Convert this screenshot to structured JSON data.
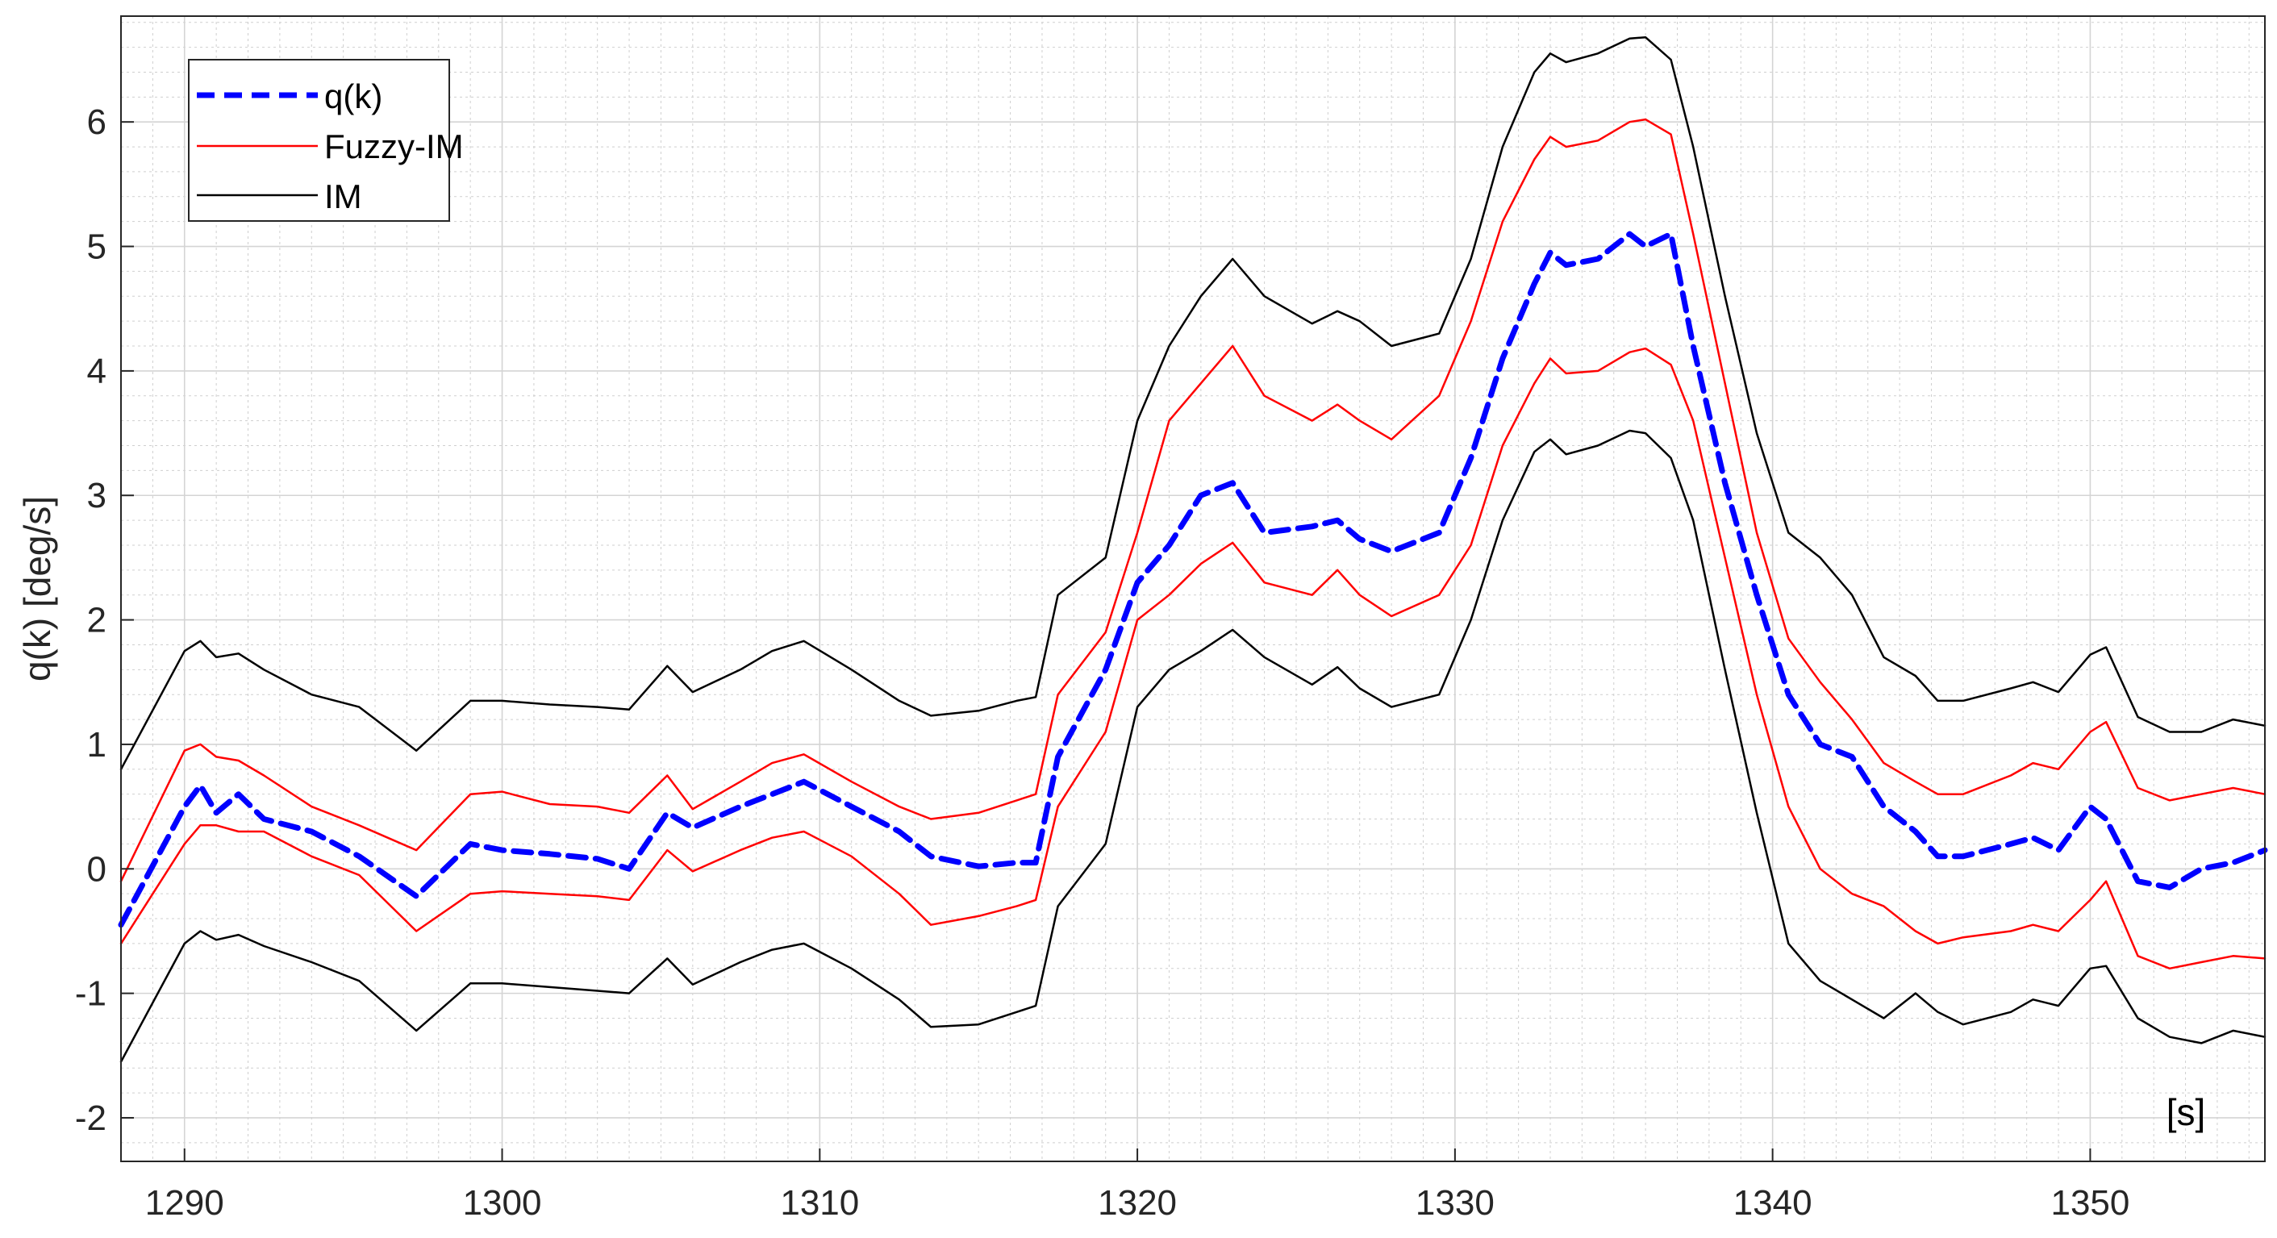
{
  "chart_data": {
    "type": "line",
    "title": "",
    "xlabel": "",
    "ylabel": "q(k) [deg/s]",
    "unit_annotation": "[s]",
    "xlim": [
      1288,
      1355.5
    ],
    "ylim": [
      -2.35,
      6.85
    ],
    "xticks": [
      1290,
      1300,
      1310,
      1320,
      1330,
      1340,
      1350
    ],
    "yticks": [
      -2,
      -1,
      0,
      1,
      2,
      3,
      4,
      5,
      6
    ],
    "grid": "major and minor",
    "legend_position": "top-left",
    "colors": {
      "q": "#0000ff",
      "fuzzy": "#ff0000",
      "im": "#000000",
      "grid": "#cfcfcf"
    },
    "legend": [
      {
        "key": "q",
        "label": "q(k)",
        "style": "dashed",
        "color": "#0000ff"
      },
      {
        "key": "fuzzy",
        "label": "Fuzzy-IM",
        "style": "solid",
        "color": "#ff0000"
      },
      {
        "key": "im",
        "label": "IM",
        "style": "solid",
        "color": "#000000"
      }
    ],
    "x": [
      1288,
      1290,
      1290.5,
      1291,
      1291.7,
      1292.5,
      1294,
      1295.5,
      1297.3,
      1299,
      1300,
      1301.5,
      1303,
      1304,
      1305.2,
      1306,
      1307.5,
      1308.5,
      1309.5,
      1311,
      1312.5,
      1313.5,
      1315,
      1316.2,
      1316.8,
      1317.5,
      1319,
      1320,
      1321,
      1322,
      1323,
      1324,
      1325.5,
      1326.3,
      1327,
      1328,
      1329.5,
      1330.5,
      1331.5,
      1332.5,
      1333,
      1333.5,
      1334.5,
      1335.5,
      1336,
      1336.8,
      1337.5,
      1338.5,
      1339.5,
      1340.5,
      1341.5,
      1342.5,
      1343.5,
      1344.5,
      1345.2,
      1346,
      1347.5,
      1348.2,
      1349,
      1350,
      1350.5,
      1351.5,
      1352.5,
      1353.5,
      1354.5,
      1355.5
    ],
    "series": [
      {
        "name": "q(k)",
        "key": "q",
        "values": [
          -0.45,
          0.5,
          0.67,
          0.45,
          0.6,
          0.4,
          0.3,
          0.1,
          -0.22,
          0.2,
          0.15,
          0.12,
          0.08,
          0.0,
          0.45,
          0.33,
          0.5,
          0.6,
          0.7,
          0.5,
          0.3,
          0.1,
          0.02,
          0.05,
          0.05,
          0.9,
          1.6,
          2.3,
          2.6,
          3.0,
          3.1,
          2.7,
          2.75,
          2.8,
          2.65,
          2.55,
          2.7,
          3.3,
          4.1,
          4.7,
          4.95,
          4.85,
          4.9,
          5.1,
          5.0,
          5.1,
          4.2,
          3.1,
          2.2,
          1.4,
          1.0,
          0.9,
          0.5,
          0.3,
          0.1,
          0.1,
          0.2,
          0.25,
          0.15,
          0.5,
          0.4,
          -0.1,
          -0.15,
          0.0,
          0.05,
          0.15
        ]
      },
      {
        "name": "Fuzzy-IM",
        "key": "fuzzy_upper",
        "values": [
          -0.1,
          0.95,
          1.0,
          0.9,
          0.87,
          0.75,
          0.5,
          0.35,
          0.15,
          0.6,
          0.62,
          0.52,
          0.5,
          0.45,
          0.75,
          0.48,
          0.7,
          0.85,
          0.92,
          0.7,
          0.5,
          0.4,
          0.45,
          0.55,
          0.6,
          1.4,
          1.9,
          2.7,
          3.6,
          3.9,
          4.2,
          3.8,
          3.6,
          3.73,
          3.6,
          3.45,
          3.8,
          4.4,
          5.2,
          5.7,
          5.88,
          5.8,
          5.85,
          6.0,
          6.02,
          5.9,
          5.1,
          3.9,
          2.7,
          1.85,
          1.5,
          1.2,
          0.85,
          0.7,
          0.6,
          0.6,
          0.75,
          0.85,
          0.8,
          1.1,
          1.18,
          0.65,
          0.55,
          0.6,
          0.65,
          0.6
        ]
      },
      {
        "name": "Fuzzy-IM",
        "key": "fuzzy_lower",
        "values": [
          -0.6,
          0.2,
          0.35,
          0.35,
          0.3,
          0.3,
          0.1,
          -0.05,
          -0.5,
          -0.2,
          -0.18,
          -0.2,
          -0.22,
          -0.25,
          0.15,
          -0.02,
          0.15,
          0.25,
          0.3,
          0.1,
          -0.2,
          -0.45,
          -0.38,
          -0.3,
          -0.25,
          0.5,
          1.1,
          2.0,
          2.2,
          2.45,
          2.62,
          2.3,
          2.2,
          2.4,
          2.2,
          2.03,
          2.2,
          2.6,
          3.4,
          3.9,
          4.1,
          3.98,
          4.0,
          4.15,
          4.18,
          4.05,
          3.6,
          2.5,
          1.4,
          0.5,
          0.0,
          -0.2,
          -0.3,
          -0.5,
          -0.6,
          -0.55,
          -0.5,
          -0.45,
          -0.5,
          -0.25,
          -0.1,
          -0.7,
          -0.8,
          -0.75,
          -0.7,
          -0.72
        ]
      },
      {
        "name": "IM",
        "key": "im_upper",
        "values": [
          0.8,
          1.75,
          1.83,
          1.7,
          1.73,
          1.6,
          1.4,
          1.3,
          0.95,
          1.35,
          1.35,
          1.32,
          1.3,
          1.28,
          1.63,
          1.42,
          1.6,
          1.75,
          1.83,
          1.6,
          1.35,
          1.23,
          1.27,
          1.35,
          1.38,
          2.2,
          2.5,
          3.6,
          4.2,
          4.6,
          4.9,
          4.6,
          4.38,
          4.48,
          4.4,
          4.2,
          4.3,
          4.9,
          5.8,
          6.4,
          6.55,
          6.48,
          6.55,
          6.67,
          6.68,
          6.5,
          5.8,
          4.6,
          3.5,
          2.7,
          2.5,
          2.2,
          1.7,
          1.55,
          1.35,
          1.35,
          1.45,
          1.5,
          1.42,
          1.72,
          1.78,
          1.22,
          1.1,
          1.1,
          1.2,
          1.15
        ]
      },
      {
        "name": "IM",
        "key": "im_lower",
        "values": [
          -1.55,
          -0.6,
          -0.5,
          -0.57,
          -0.53,
          -0.62,
          -0.75,
          -0.9,
          -1.3,
          -0.92,
          -0.92,
          -0.95,
          -0.98,
          -1.0,
          -0.72,
          -0.93,
          -0.75,
          -0.65,
          -0.6,
          -0.8,
          -1.05,
          -1.27,
          -1.25,
          -1.15,
          -1.1,
          -0.3,
          0.2,
          1.3,
          1.6,
          1.75,
          1.92,
          1.7,
          1.48,
          1.62,
          1.45,
          1.3,
          1.4,
          2.0,
          2.8,
          3.35,
          3.45,
          3.33,
          3.4,
          3.52,
          3.5,
          3.3,
          2.8,
          1.6,
          0.45,
          -0.6,
          -0.9,
          -1.05,
          -1.2,
          -1.0,
          -1.15,
          -1.25,
          -1.15,
          -1.05,
          -1.1,
          -0.8,
          -0.78,
          -1.2,
          -1.35,
          -1.4,
          -1.3,
          -1.35
        ]
      }
    ]
  }
}
